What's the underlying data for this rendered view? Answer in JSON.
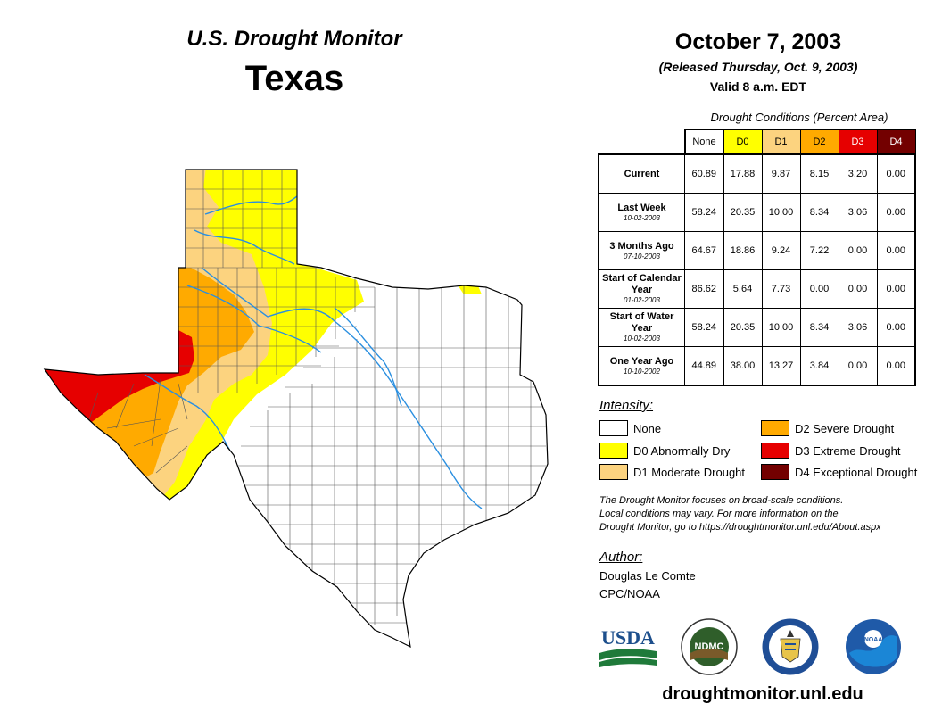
{
  "header": {
    "subtitle": "U.S. Drought Monitor",
    "state": "Texas",
    "date": "October 7, 2003",
    "released": "(Released Thursday, Oct. 9, 2003)",
    "valid": "Valid 8 a.m. EDT"
  },
  "table": {
    "title": "Drought Conditions (Percent Area)",
    "columns": [
      "None",
      "D0",
      "D1",
      "D2",
      "D3",
      "D4"
    ],
    "column_colors": [
      "#ffffff",
      "#ffff00",
      "#fcd37f",
      "#ffaa00",
      "#e60000",
      "#730000"
    ],
    "rows": [
      {
        "label": "Current",
        "date": "",
        "values": [
          "60.89",
          "17.88",
          "9.87",
          "8.15",
          "3.20",
          "0.00"
        ]
      },
      {
        "label": "Last Week",
        "date": "10-02-2003",
        "values": [
          "58.24",
          "20.35",
          "10.00",
          "8.34",
          "3.06",
          "0.00"
        ]
      },
      {
        "label": "3 Months Ago",
        "date": "07-10-2003",
        "values": [
          "64.67",
          "18.86",
          "9.24",
          "7.22",
          "0.00",
          "0.00"
        ]
      },
      {
        "label": "Start of Calendar Year",
        "date": "01-02-2003",
        "values": [
          "86.62",
          "5.64",
          "7.73",
          "0.00",
          "0.00",
          "0.00"
        ]
      },
      {
        "label": "Start of Water Year",
        "date": "10-02-2003",
        "values": [
          "58.24",
          "20.35",
          "10.00",
          "8.34",
          "3.06",
          "0.00"
        ]
      },
      {
        "label": "One Year Ago",
        "date": "10-10-2002",
        "values": [
          "44.89",
          "38.00",
          "13.27",
          "3.84",
          "0.00",
          "0.00"
        ]
      }
    ]
  },
  "legend": {
    "title": "Intensity:",
    "items": [
      {
        "label": "None",
        "color": "#ffffff"
      },
      {
        "label": "D0 Abnormally Dry",
        "color": "#ffff00"
      },
      {
        "label": "D1 Moderate Drought",
        "color": "#fcd37f"
      },
      {
        "label": "D2 Severe Drought",
        "color": "#ffaa00"
      },
      {
        "label": "D3 Extreme Drought",
        "color": "#e60000"
      },
      {
        "label": "D4 Exceptional Drought",
        "color": "#730000"
      }
    ]
  },
  "note": {
    "line1": "The Drought Monitor focuses on broad-scale conditions.",
    "line2": "Local conditions may vary. For more information on the",
    "line3": "Drought Monitor, go to https://droughtmonitor.unl.edu/About.aspx"
  },
  "author": {
    "title": "Author:",
    "name": "Douglas Le Comte",
    "org": "CPC/NOAA"
  },
  "logos": {
    "usda": "USDA",
    "ndmc": "NDMC",
    "noaa": "NOAA"
  },
  "footer": {
    "website": "droughtmonitor.unl.edu"
  },
  "map_colors": {
    "none": "#ffffff",
    "d0": "#ffff00",
    "d1": "#fcd37f",
    "d2": "#ffaa00",
    "d3": "#e60000",
    "river": "#2a8fe0"
  }
}
